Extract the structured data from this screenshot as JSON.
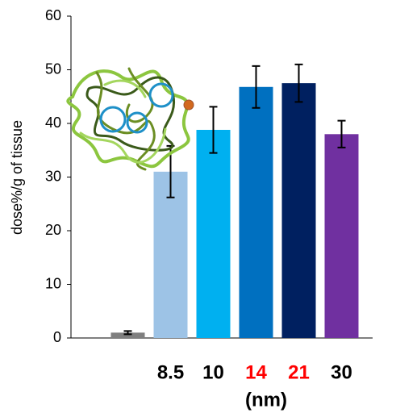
{
  "chart_data": {
    "type": "bar",
    "y_label": "dose%/g of tissue",
    "x_label": "(nm)",
    "categories": [
      null,
      "8.5",
      "10",
      "14",
      "21",
      "30"
    ],
    "label_colors": [
      "#000000",
      "#000000",
      "#000000",
      "#ff0000",
      "#ff0000",
      "#000000"
    ],
    "values": [
      1,
      31,
      38.8,
      46.8,
      47.5,
      38
    ],
    "errors": [
      0.3,
      4.8,
      4.3,
      3.9,
      3.5,
      2.5
    ],
    "colors": [
      "#7f7f7f",
      "#9dc3e6",
      "#00b0f0",
      "#0070c0",
      "#002060",
      "#7030a0"
    ],
    "ylim": [
      0,
      60
    ],
    "yticks": [
      0,
      10,
      20,
      30,
      40,
      50,
      60
    ]
  }
}
